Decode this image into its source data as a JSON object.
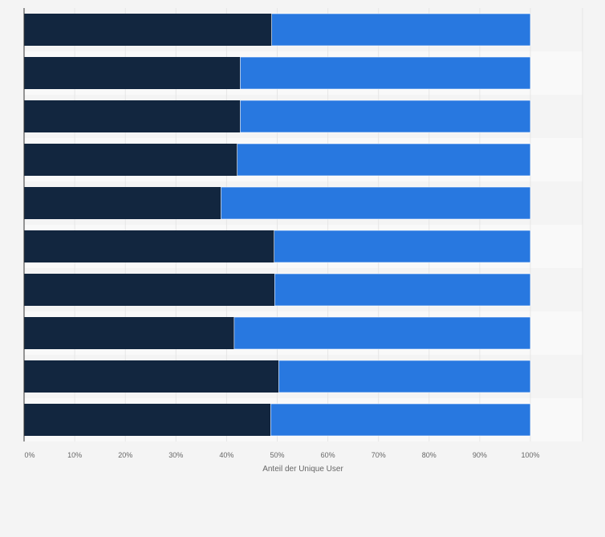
{
  "chart_data": {
    "type": "bar",
    "orientation": "horizontal",
    "stacked": true,
    "stack_mode": "percent",
    "categories": [
      "",
      "",
      "",
      "",
      "",
      "",
      "",
      "",
      "",
      ""
    ],
    "series": [
      {
        "color": "#12263f",
        "values": [
          48.9,
          42.7,
          42.7,
          42.1,
          38.9,
          49.4,
          49.5,
          41.5,
          50.3,
          48.7
        ]
      },
      {
        "color": "#2878e0",
        "values": [
          51.1,
          57.3,
          57.3,
          57.9,
          61.1,
          50.6,
          50.5,
          58.5,
          49.7,
          51.3
        ]
      }
    ],
    "xlim": [
      0,
      100
    ],
    "xticks": [
      "0%",
      "10%",
      "20%",
      "30%",
      "40%",
      "50%",
      "60%",
      "70%",
      "80%",
      "90%",
      "100%"
    ],
    "xlabel": "Anteil der Unique User",
    "ylabel": "",
    "title": "",
    "grid": true,
    "legend": "none",
    "colors": {
      "background": "#f4f4f4",
      "plot_band": "#f9f9f9",
      "grid": "#e6e6e6",
      "axis": "#333333",
      "text": "#666666"
    }
  }
}
